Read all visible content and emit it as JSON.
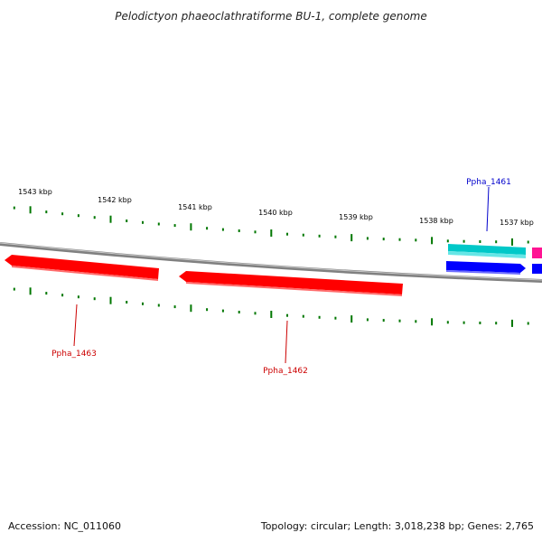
{
  "title": "Pelodictyon phaeoclathratiforme BU-1, complete genome",
  "footer": {
    "accession": "Accession: NC_011060",
    "summary": "Topology: circular; Length: 3,018,238 bp; Genes: 2,765"
  },
  "scale_labels": [
    "1543 kbp",
    "1542 kbp",
    "1541 kbp",
    "1540 kbp",
    "1539 kbp",
    "1538 kbp",
    "1537 kbp"
  ],
  "genes": [
    {
      "name": "Ppha_1463",
      "strand": "minus",
      "color": "#ff0000"
    },
    {
      "name": "Ppha_1462",
      "strand": "minus",
      "color": "#ff0000"
    },
    {
      "name": "Ppha_1461",
      "strand": "plus",
      "color": "#00c8c8"
    },
    {
      "name": "",
      "strand": "minus",
      "color": "#0000ff"
    },
    {
      "name": "",
      "strand": "plus",
      "color": "#ff1493"
    },
    {
      "name": "",
      "strand": "minus",
      "color": "#0000ff"
    }
  ],
  "colors": {
    "backbone": "#808080",
    "ticks": "#007700",
    "minus_label": "#cc0000",
    "plus_label": "#0000cc"
  }
}
